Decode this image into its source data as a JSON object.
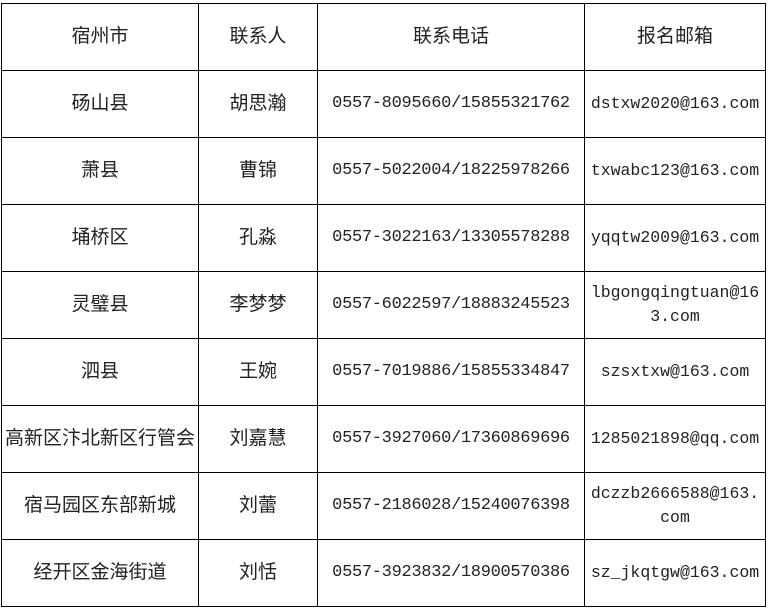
{
  "table": {
    "headers": [
      "宿州市",
      "联系人",
      "联系电话",
      "报名邮箱"
    ],
    "rows": [
      [
        "砀山县",
        "胡思瀚",
        "0557-8095660/15855321762",
        "dstxw2020@163.com"
      ],
      [
        "萧县",
        "曹锦",
        "0557-5022004/18225978266",
        "txwabc123@163.com"
      ],
      [
        "埇桥区",
        "孔淼",
        "0557-3022163/13305578288",
        "yqqtw2009@163.com"
      ],
      [
        "灵璧县",
        "李梦梦",
        "0557-6022597/18883245523",
        "lbgongqingtuan@163.com"
      ],
      [
        "泗县",
        "王婉",
        "0557-7019886/15855334847",
        "szsxtxw@163.com"
      ],
      [
        "高新区汴北新区行管会",
        "刘嘉慧",
        "0557-3927060/17360869696",
        "1285021898@qq.com"
      ],
      [
        "宿马园区东部新城",
        "刘蕾",
        "0557-2186028/15240076398",
        "dczzb2666588@163.com"
      ],
      [
        "经开区金海街道",
        "刘恬",
        "0557-3923832/18900570386",
        "sz_jkqtgw@163.com"
      ]
    ]
  }
}
